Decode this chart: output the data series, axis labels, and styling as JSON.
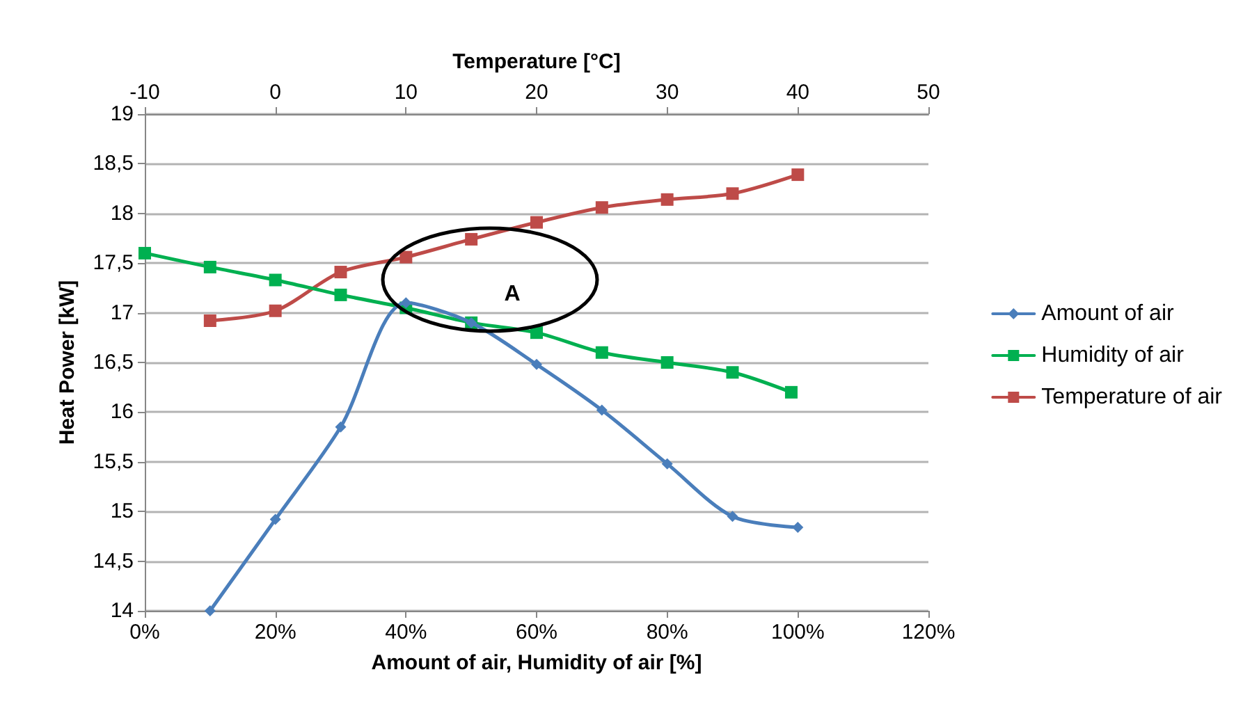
{
  "chart_data": {
    "type": "line",
    "xlabel": "Amount of air, Humidity of air [%]",
    "x2label": "Temperature [°C]",
    "ylabel": "Heat Power [kW]",
    "xlim": [
      0,
      120
    ],
    "xticks": [
      {
        "value": 0,
        "label": "0%"
      },
      {
        "value": 20,
        "label": "20%"
      },
      {
        "value": 40,
        "label": "40%"
      },
      {
        "value": 60,
        "label": "60%"
      },
      {
        "value": 80,
        "label": "80%"
      },
      {
        "value": 100,
        "label": "100%"
      },
      {
        "value": 120,
        "label": "120%"
      }
    ],
    "x2lim": [
      -10,
      50
    ],
    "x2ticks": [
      -10,
      0,
      10,
      20,
      30,
      40,
      50
    ],
    "ylim": [
      14,
      19
    ],
    "yticks": [
      14,
      {
        "value": 14.5,
        "label": "14,5"
      },
      15,
      {
        "value": 15.5,
        "label": "15,5"
      },
      16,
      {
        "value": 16.5,
        "label": "16,5"
      },
      17,
      {
        "value": 17.5,
        "label": "17,5"
      },
      18,
      {
        "value": 18.5,
        "label": "18,5"
      },
      19
    ],
    "grid": "y",
    "legend": "right",
    "line_style": "solid",
    "series": [
      {
        "name": "Amount of air",
        "color": "#4a7ebb",
        "marker": "diamond",
        "x": [
          10,
          20,
          30,
          40,
          50,
          60,
          70,
          80,
          90,
          100
        ],
        "values": [
          14.0,
          14.92,
          15.85,
          17.1,
          16.9,
          16.48,
          16.02,
          15.48,
          14.95,
          14.84
        ]
      },
      {
        "name": "Humidity of air",
        "color": "#00b050",
        "marker": "square",
        "x": [
          0,
          10,
          20,
          30,
          40,
          50,
          60,
          70,
          80,
          90,
          99
        ],
        "values": [
          17.6,
          17.46,
          17.33,
          17.18,
          17.05,
          16.9,
          16.8,
          16.6,
          16.5,
          16.4,
          16.2
        ]
      },
      {
        "name": "Temperature of air",
        "color": "#be4b48",
        "marker": "square",
        "axis": "x2",
        "x": [
          -5,
          0,
          5,
          10,
          15,
          20,
          25,
          30,
          35,
          40
        ],
        "values": [
          16.92,
          17.02,
          17.41,
          17.56,
          17.74,
          17.91,
          18.06,
          18.14,
          18.2,
          18.39
        ]
      }
    ],
    "annotations": [
      "A"
    ]
  }
}
